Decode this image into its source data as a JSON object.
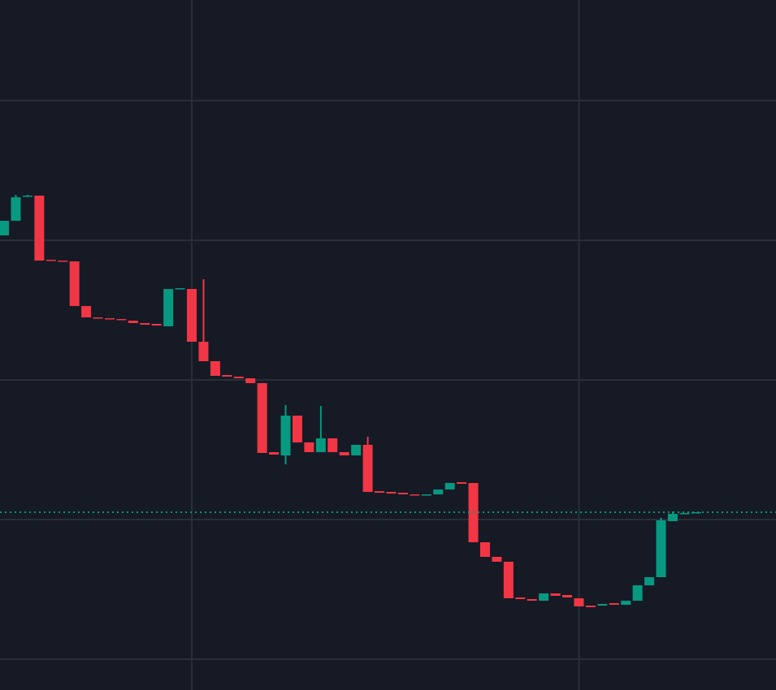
{
  "chart_data": {
    "type": "candlestick",
    "up_color": "#089981",
    "down_color": "#f23645",
    "grid_color": "#2a2e39",
    "background": "#161a25",
    "ylim": [
      0,
      850
    ],
    "xlim": [
      -0.35,
      65.8
    ],
    "ygrid": [
      38,
      210,
      382,
      554,
      726
    ],
    "xgrid": [
      16,
      49
    ],
    "last_price": 219,
    "open": [
      560,
      578,
      608,
      609,
      530,
      529,
      528,
      473,
      459,
      458,
      457,
      455,
      452,
      451,
      448,
      494,
      494,
      429,
      405,
      388,
      386,
      384,
      378,
      293,
      289,
      338,
      305,
      293,
      310,
      293,
      289,
      302,
      245,
      244,
      243,
      241,
      240,
      241,
      247,
      256,
      255,
      182,
      164,
      158,
      114,
      112,
      110,
      119,
      117,
      113,
      104,
      104,
      107,
      105,
      110,
      129,
      139,
      208,
      217,
      218
    ],
    "high": [
      578,
      610,
      610,
      609,
      530,
      529,
      528,
      473,
      459,
      458,
      457,
      455,
      452,
      451,
      494,
      495,
      494,
      506,
      405,
      388,
      386,
      384,
      378,
      293,
      351,
      338,
      305,
      350,
      310,
      293,
      302,
      312,
      245,
      244,
      243,
      241,
      241,
      247,
      255,
      256,
      255,
      182,
      164,
      158,
      114,
      112,
      119,
      119,
      117,
      113,
      104,
      106,
      107,
      110,
      129,
      139,
      212,
      220,
      218,
      219
    ],
    "low": [
      560,
      578,
      608,
      529,
      529,
      528,
      473,
      459,
      458,
      457,
      456,
      452,
      450,
      449,
      448,
      494,
      429,
      405,
      387,
      386,
      384,
      378,
      292,
      290,
      278,
      305,
      293,
      293,
      293,
      289,
      289,
      244,
      243,
      242,
      241,
      240,
      240,
      241,
      247,
      254,
      182,
      164,
      158,
      113,
      112,
      110,
      110,
      116,
      114,
      103,
      102,
      104,
      105,
      105,
      110,
      129,
      139,
      208,
      217,
      218
    ],
    "close": [
      578,
      607,
      609,
      529,
      529,
      528,
      473,
      459,
      458,
      457,
      456,
      452,
      450,
      449,
      494,
      495,
      429,
      405,
      387,
      386,
      384,
      378,
      292,
      290,
      338,
      305,
      293,
      310,
      293,
      289,
      302,
      244,
      243,
      242,
      241,
      240,
      241,
      247,
      255,
      254,
      182,
      164,
      158,
      113,
      112,
      110,
      119,
      116,
      114,
      103,
      102,
      106,
      105,
      110,
      129,
      139,
      209,
      217,
      218,
      219
    ]
  }
}
